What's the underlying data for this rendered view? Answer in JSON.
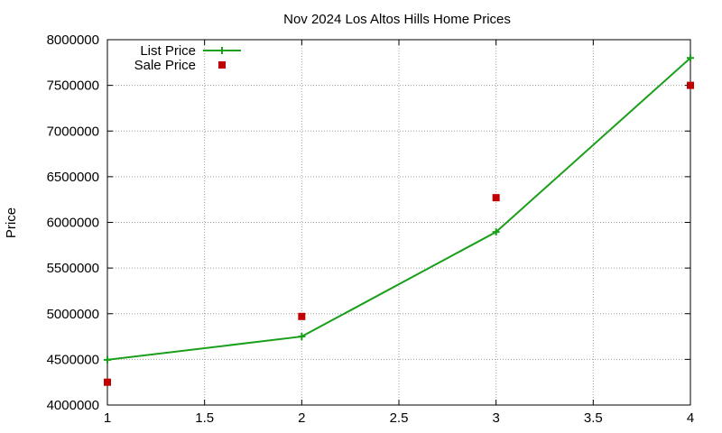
{
  "chart_data": {
    "type": "line",
    "title": "Nov 2024 Los Altos Hills Home Prices",
    "xlabel": "",
    "ylabel": "Price",
    "xlim": [
      1,
      4
    ],
    "ylim": [
      4000000,
      8000000
    ],
    "grid": true,
    "legend_position": "top-left",
    "x_ticks": [
      1,
      1.5,
      2,
      2.5,
      3,
      3.5,
      4
    ],
    "x_tick_labels": [
      "1",
      "1.5",
      "2",
      "2.5",
      "3",
      "3.5",
      "4"
    ],
    "y_ticks": [
      4000000,
      4500000,
      5000000,
      5500000,
      6000000,
      6500000,
      7000000,
      7500000,
      8000000
    ],
    "y_tick_labels": [
      "4000000",
      "4500000",
      "5000000",
      "5500000",
      "6000000",
      "6500000",
      "7000000",
      "7500000",
      "8000000"
    ],
    "series": [
      {
        "name": "List Price",
        "style": "line-plus",
        "color": "#1a9f1a",
        "x": [
          1,
          2,
          3,
          4
        ],
        "y": [
          4495000,
          4750000,
          5895000,
          7800000
        ]
      },
      {
        "name": "Sale Price",
        "style": "square-points",
        "color": "#c00000",
        "x": [
          1,
          2,
          3,
          4
        ],
        "y": [
          4250000,
          4970000,
          6270000,
          7500000
        ]
      }
    ]
  }
}
